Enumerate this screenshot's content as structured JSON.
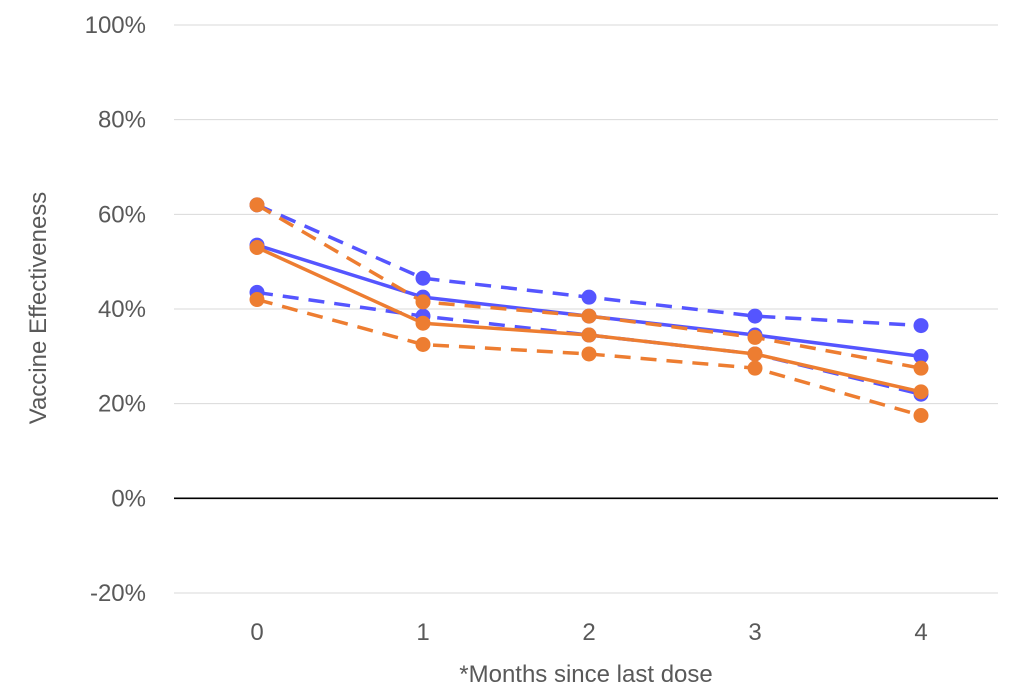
{
  "chart_data": {
    "type": "line",
    "xlabel": "*Months since last dose",
    "ylabel": "Vaccine Effectiveness",
    "x": [
      0,
      1,
      2,
      3,
      4
    ],
    "x_tick_labels": [
      "0",
      "1",
      "2",
      "3",
      "4"
    ],
    "ylim": [
      -20,
      100
    ],
    "y_ticks": [
      -20,
      0,
      20,
      40,
      60,
      80,
      100
    ],
    "y_tick_labels": [
      "-20%",
      "0%",
      "20%",
      "40%",
      "60%",
      "80%",
      "100%"
    ],
    "grid": true,
    "legend": "none",
    "series": [
      {
        "color": "#5555ff",
        "dash": "solid",
        "values": [
          53.5,
          42.5,
          38.5,
          34.5,
          30
        ]
      },
      {
        "color": "#5555ff",
        "dash": "dashed",
        "values": [
          62,
          46.5,
          42.5,
          38.5,
          36.5
        ]
      },
      {
        "color": "#5555ff",
        "dash": "dashed",
        "values": [
          43.5,
          38.5,
          34.5,
          30.5,
          22
        ]
      },
      {
        "color": "#ed7d31",
        "dash": "solid",
        "values": [
          53,
          37,
          34.5,
          30.5,
          22.5
        ]
      },
      {
        "color": "#ed7d31",
        "dash": "dashed",
        "values": [
          62,
          41.5,
          38.5,
          34,
          27.5
        ]
      },
      {
        "color": "#ed7d31",
        "dash": "dashed",
        "values": [
          42,
          32.5,
          30.5,
          27.5,
          17.5
        ]
      }
    ]
  }
}
